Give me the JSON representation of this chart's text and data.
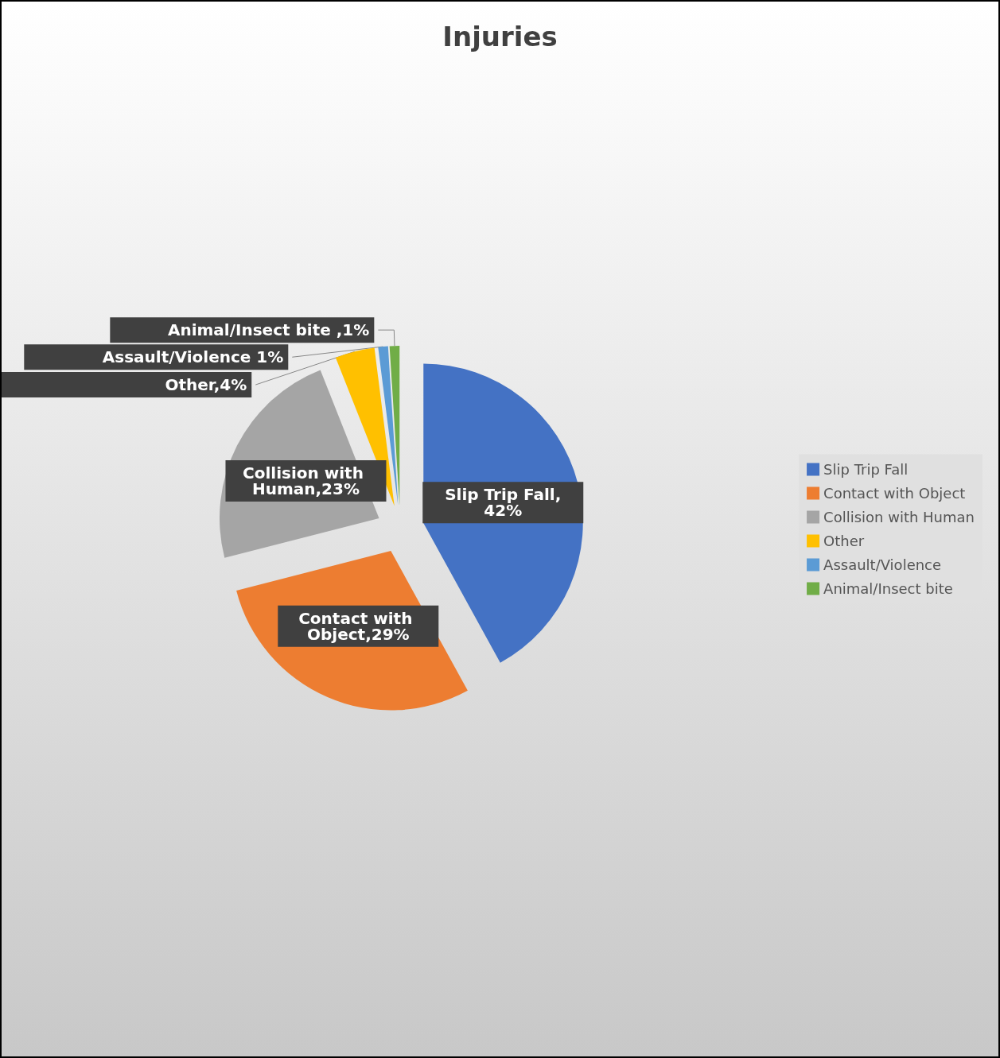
{
  "chart_data": {
    "type": "pie",
    "title": "Injuries",
    "categories": [
      "Slip Trip Fall",
      "Contact with Object",
      "Collision with Human",
      "Other",
      "Assault/Violence",
      "Animal/Insect bite"
    ],
    "values": [
      42,
      29,
      23,
      4,
      1,
      1
    ],
    "colors": [
      "#4472c4",
      "#ed7d31",
      "#a5a5a5",
      "#ffc000",
      "#5b9bd5",
      "#70ad47"
    ],
    "value_labels": [
      "Slip Trip Fall,42%",
      "Contact with Object,29%",
      "Collision with Human,23%",
      "Other,4%",
      "Assault/Violence 1%",
      "Animal/Insect bite ,1%"
    ],
    "legend": "right"
  }
}
